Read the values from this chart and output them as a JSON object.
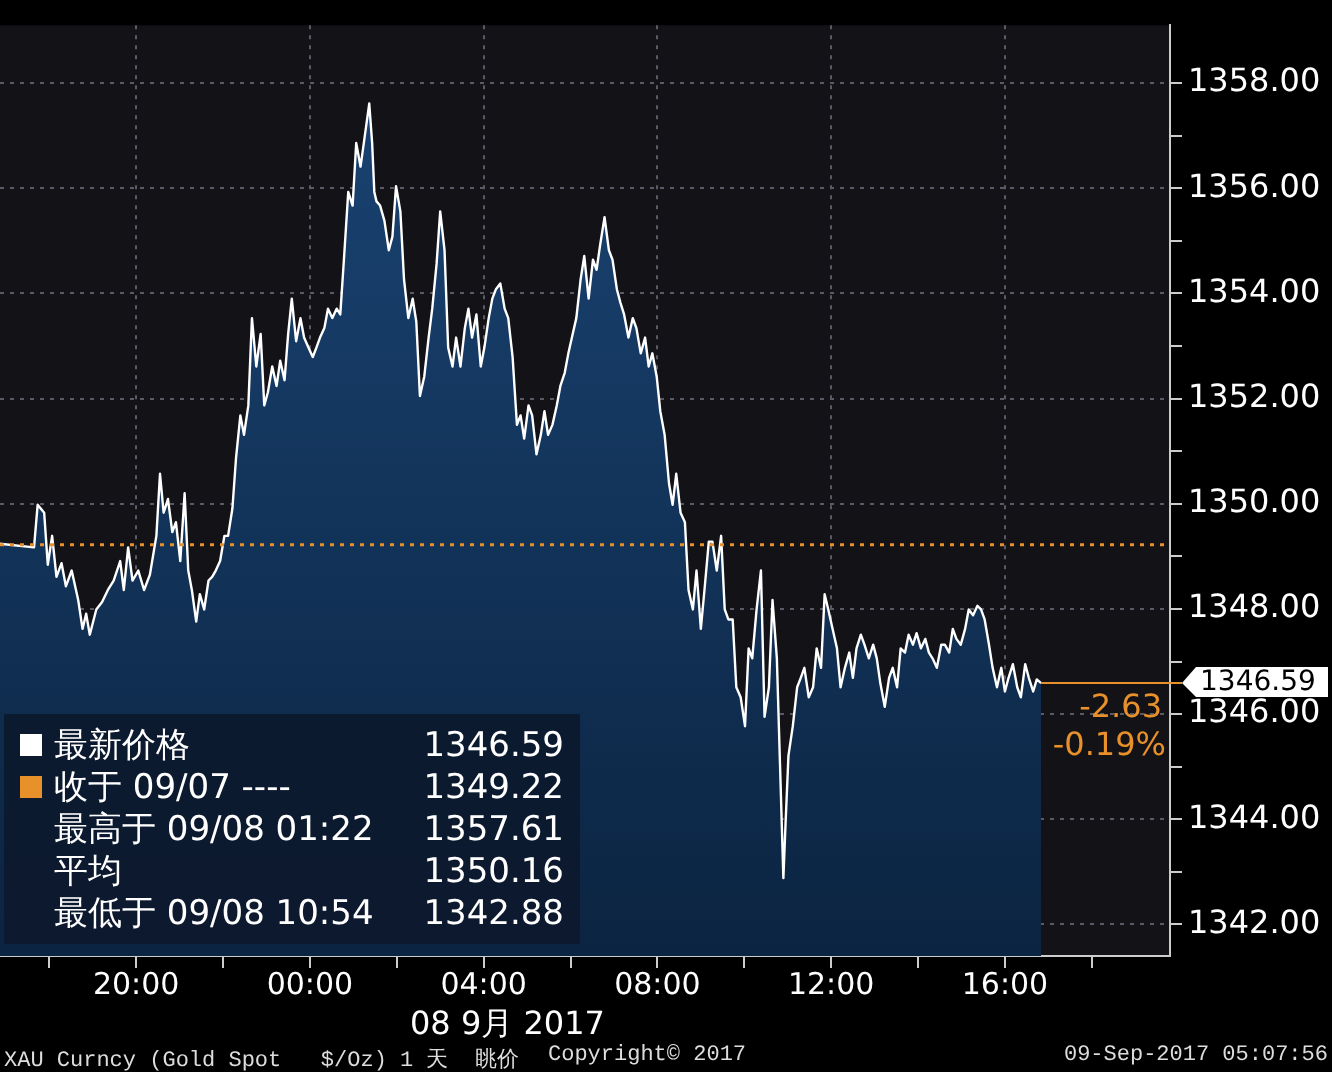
{
  "chart_data": {
    "type": "area",
    "x": [
      "2017-09-07T16:52",
      "2017-09-07T17:39",
      "2017-09-07T17:44",
      "2017-09-07T17:53",
      "2017-09-07T17:58",
      "2017-09-07T18:04",
      "2017-09-07T18:10",
      "2017-09-07T18:17",
      "2017-09-07T18:23",
      "2017-09-07T18:31",
      "2017-09-07T18:40",
      "2017-09-07T18:46",
      "2017-09-07T18:51",
      "2017-09-07T18:56",
      "2017-09-07T19:05",
      "2017-09-07T19:13",
      "2017-09-07T19:21",
      "2017-09-07T19:29",
      "2017-09-07T19:38",
      "2017-09-07T19:43",
      "2017-09-07T19:49",
      "2017-09-07T19:55",
      "2017-09-07T20:03",
      "2017-09-07T20:11",
      "2017-09-07T20:19",
      "2017-09-07T20:28",
      "2017-09-07T20:33",
      "2017-09-07T20:38",
      "2017-09-07T20:44",
      "2017-09-07T20:50",
      "2017-09-07T20:55",
      "2017-09-07T21:01",
      "2017-09-07T21:07",
      "2017-09-07T21:12",
      "2017-09-07T21:17",
      "2017-09-07T21:23",
      "2017-09-07T21:28",
      "2017-09-07T21:34",
      "2017-09-07T21:40",
      "2017-09-07T21:45",
      "2017-09-07T21:50",
      "2017-09-07T21:56",
      "2017-09-07T22:02",
      "2017-09-07T22:07",
      "2017-09-07T22:13",
      "2017-09-07T22:18",
      "2017-09-07T22:24",
      "2017-09-07T22:29",
      "2017-09-07T22:35",
      "2017-09-07T22:40",
      "2017-09-07T22:46",
      "2017-09-07T22:52",
      "2017-09-07T22:57",
      "2017-09-07T23:02",
      "2017-09-07T23:08",
      "2017-09-07T23:14",
      "2017-09-07T23:19",
      "2017-09-07T23:25",
      "2017-09-07T23:30",
      "2017-09-07T23:35",
      "2017-09-07T23:41",
      "2017-09-07T23:47",
      "2017-09-07T23:52",
      "2017-09-07T23:58",
      "2017-09-08T00:04",
      "2017-09-08T00:09",
      "2017-09-08T00:14",
      "2017-09-08T00:20",
      "2017-09-08T00:25",
      "2017-09-08T00:31",
      "2017-09-08T00:37",
      "2017-09-08T00:42",
      "2017-09-08T00:47",
      "2017-09-08T00:53",
      "2017-09-08T00:59",
      "2017-09-08T01:04",
      "2017-09-08T01:10",
      "2017-09-08T01:22",
      "2017-09-08T01:26",
      "2017-09-08T01:29",
      "2017-09-08T01:32",
      "2017-09-08T01:37",
      "2017-09-08T01:43",
      "2017-09-08T01:49",
      "2017-09-08T01:54",
      "2017-09-08T01:59",
      "2017-09-08T02:05",
      "2017-09-08T02:10",
      "2017-09-08T02:16",
      "2017-09-08T02:22",
      "2017-09-08T02:27",
      "2017-09-08T02:32",
      "2017-09-08T02:38",
      "2017-09-08T02:44",
      "2017-09-08T02:49",
      "2017-09-08T02:55",
      "2017-09-08T03:00",
      "2017-09-08T03:06",
      "2017-09-08T03:11",
      "2017-09-08T03:17",
      "2017-09-08T03:22",
      "2017-09-08T03:28",
      "2017-09-08T03:34",
      "2017-09-08T03:39",
      "2017-09-08T03:44",
      "2017-09-08T03:50",
      "2017-09-08T03:56",
      "2017-09-08T04:01",
      "2017-09-08T04:07",
      "2017-09-08T04:12",
      "2017-09-08T04:17",
      "2017-09-08T04:23",
      "2017-09-08T04:29",
      "2017-09-08T04:34",
      "2017-09-08T04:40",
      "2017-09-08T04:46",
      "2017-09-08T04:51",
      "2017-09-08T04:56",
      "2017-09-08T05:02",
      "2017-09-08T05:07",
      "2017-09-08T05:13",
      "2017-09-08T05:19",
      "2017-09-08T05:24",
      "2017-09-08T05:29",
      "2017-09-08T05:35",
      "2017-09-08T05:41",
      "2017-09-08T05:46",
      "2017-09-08T05:52",
      "2017-09-08T05:57",
      "2017-09-08T06:03",
      "2017-09-08T06:08",
      "2017-09-08T06:14",
      "2017-09-08T06:19",
      "2017-09-08T06:25",
      "2017-09-08T06:31",
      "2017-09-08T06:36",
      "2017-09-08T06:41",
      "2017-09-08T06:47",
      "2017-09-08T06:53",
      "2017-09-08T06:58",
      "2017-09-08T07:04",
      "2017-09-08T07:09",
      "2017-09-08T07:14",
      "2017-09-08T07:20",
      "2017-09-08T07:26",
      "2017-09-08T07:31",
      "2017-09-08T07:37",
      "2017-09-08T07:43",
      "2017-09-08T07:48",
      "2017-09-08T07:53",
      "2017-09-08T07:59",
      "2017-09-08T08:04",
      "2017-09-08T08:10",
      "2017-09-08T08:16",
      "2017-09-08T08:21",
      "2017-09-08T08:26",
      "2017-09-08T08:32",
      "2017-09-08T08:38",
      "2017-09-08T08:43",
      "2017-09-08T08:49",
      "2017-09-08T08:54",
      "2017-09-08T09:00",
      "2017-09-08T09:05",
      "2017-09-08T09:11",
      "2017-09-08T09:16",
      "2017-09-08T09:22",
      "2017-09-08T09:28",
      "2017-09-08T09:33",
      "2017-09-08T09:38",
      "2017-09-08T09:44",
      "2017-09-08T09:49",
      "2017-09-08T09:55",
      "2017-09-08T10:01",
      "2017-09-08T10:06",
      "2017-09-08T10:11",
      "2017-09-08T10:17",
      "2017-09-08T10:23",
      "2017-09-08T10:28",
      "2017-09-08T10:34",
      "2017-09-08T10:39",
      "2017-09-08T10:45",
      "2017-09-08T10:54",
      "2017-09-08T10:57",
      "2017-09-08T11:01",
      "2017-09-08T11:07",
      "2017-09-08T11:13",
      "2017-09-08T11:18",
      "2017-09-08T11:23",
      "2017-09-08T11:29",
      "2017-09-08T11:35",
      "2017-09-08T11:40",
      "2017-09-08T11:46",
      "2017-09-08T11:51",
      "2017-09-08T11:56",
      "2017-09-08T12:02",
      "2017-09-08T12:08",
      "2017-09-08T12:13",
      "2017-09-08T12:19",
      "2017-09-08T12:25",
      "2017-09-08T12:30",
      "2017-09-08T12:35",
      "2017-09-08T12:41",
      "2017-09-08T12:46",
      "2017-09-08T12:52",
      "2017-09-08T12:58",
      "2017-09-08T13:03",
      "2017-09-08T13:08",
      "2017-09-08T13:14",
      "2017-09-08T13:20",
      "2017-09-08T13:25",
      "2017-09-08T13:31",
      "2017-09-08T13:36",
      "2017-09-08T13:42",
      "2017-09-08T13:47",
      "2017-09-08T13:53",
      "2017-09-08T13:58",
      "2017-09-08T14:04",
      "2017-09-08T14:10",
      "2017-09-08T14:15",
      "2017-09-08T14:20",
      "2017-09-08T14:26",
      "2017-09-08T14:32",
      "2017-09-08T14:37",
      "2017-09-08T14:43",
      "2017-09-08T14:48",
      "2017-09-08T14:53",
      "2017-09-08T14:59",
      "2017-09-08T15:05",
      "2017-09-08T15:10",
      "2017-09-08T15:16",
      "2017-09-08T15:22",
      "2017-09-08T15:27",
      "2017-09-08T15:32",
      "2017-09-08T15:38",
      "2017-09-08T15:43",
      "2017-09-08T15:49",
      "2017-09-08T15:55",
      "2017-09-08T16:00",
      "2017-09-08T16:05",
      "2017-09-08T16:11",
      "2017-09-08T16:17",
      "2017-09-08T16:22",
      "2017-09-08T16:28",
      "2017-09-08T16:33",
      "2017-09-08T16:39",
      "2017-09-08T16:44",
      "2017-09-08T16:50"
    ],
    "series": [
      {
        "name": "最新价格",
        "color": "#ffffff",
        "values": [
          1349.24,
          1349.17,
          1349.98,
          1349.83,
          1348.84,
          1349.39,
          1348.61,
          1348.87,
          1348.43,
          1348.73,
          1348.17,
          1347.62,
          1347.91,
          1347.51,
          1347.99,
          1348.13,
          1348.36,
          1348.54,
          1348.91,
          1348.36,
          1349.17,
          1348.54,
          1348.73,
          1348.36,
          1348.65,
          1349.39,
          1350.57,
          1349.83,
          1350.09,
          1349.46,
          1349.65,
          1348.91,
          1350.2,
          1348.73,
          1348.36,
          1347.76,
          1348.28,
          1347.99,
          1348.54,
          1348.61,
          1348.73,
          1348.91,
          1349.39,
          1349.39,
          1349.91,
          1350.87,
          1351.68,
          1351.31,
          1351.87,
          1353.53,
          1352.61,
          1353.23,
          1351.87,
          1352.12,
          1352.61,
          1352.24,
          1352.72,
          1352.35,
          1353.23,
          1353.9,
          1353.09,
          1353.53,
          1353.16,
          1352.97,
          1352.79,
          1352.97,
          1353.16,
          1353.34,
          1353.71,
          1353.53,
          1353.71,
          1353.6,
          1354.64,
          1355.93,
          1355.67,
          1356.86,
          1356.41,
          1357.61,
          1356.86,
          1355.93,
          1355.75,
          1355.67,
          1355.38,
          1354.82,
          1355.08,
          1356.04,
          1355.56,
          1354.27,
          1353.53,
          1353.9,
          1353.46,
          1352.05,
          1352.42,
          1353.16,
          1353.71,
          1354.56,
          1355.56,
          1354.82,
          1352.97,
          1352.61,
          1353.16,
          1352.61,
          1353.34,
          1353.71,
          1353.16,
          1353.6,
          1352.61,
          1352.97,
          1353.53,
          1353.9,
          1354.08,
          1354.19,
          1353.71,
          1353.53,
          1352.79,
          1351.5,
          1351.68,
          1351.24,
          1351.87,
          1351.68,
          1350.94,
          1351.31,
          1351.76,
          1351.31,
          1351.5,
          1351.87,
          1352.24,
          1352.49,
          1352.86,
          1353.23,
          1353.53,
          1354.27,
          1354.71,
          1353.9,
          1354.64,
          1354.45,
          1354.93,
          1355.45,
          1354.82,
          1354.64,
          1354.08,
          1353.82,
          1353.6,
          1353.16,
          1353.53,
          1353.34,
          1352.86,
          1353.16,
          1352.61,
          1352.86,
          1352.42,
          1351.76,
          1351.31,
          1350.39,
          1349.98,
          1350.57,
          1349.83,
          1349.65,
          1348.36,
          1347.99,
          1348.73,
          1347.62,
          1348.36,
          1349.28,
          1349.28,
          1348.73,
          1349.39,
          1347.99,
          1347.8,
          1347.8,
          1346.51,
          1346.32,
          1345.77,
          1347.25,
          1347.06,
          1347.99,
          1348.73,
          1345.95,
          1346.51,
          1348.17,
          1347.06,
          1342.88,
          1343.92,
          1345.21,
          1345.77,
          1346.51,
          1346.69,
          1346.88,
          1346.32,
          1346.51,
          1347.25,
          1346.88,
          1348.28,
          1347.99,
          1347.62,
          1347.25,
          1346.51,
          1346.88,
          1347.17,
          1346.69,
          1347.25,
          1347.51,
          1347.32,
          1347.06,
          1347.32,
          1347.06,
          1346.58,
          1346.14,
          1346.69,
          1346.88,
          1346.51,
          1347.25,
          1347.17,
          1347.51,
          1347.32,
          1347.54,
          1347.25,
          1347.43,
          1347.17,
          1347.06,
          1346.88,
          1347.32,
          1347.32,
          1347.17,
          1347.62,
          1347.43,
          1347.32,
          1347.62,
          1347.99,
          1347.88,
          1348.06,
          1347.99,
          1347.8,
          1347.32,
          1346.88,
          1346.51,
          1346.88,
          1346.43,
          1346.69,
          1346.95,
          1346.51,
          1346.32,
          1346.95,
          1346.69,
          1346.43,
          1346.66,
          1346.59
        ]
      }
    ],
    "xlim": [
      "2017-09-07T16:52",
      "2017-09-08T19:48"
    ],
    "xticks": [
      {
        "value": "2017-09-07T18:00",
        "label": null
      },
      {
        "value": "2017-09-07T20:00",
        "label": "20:00"
      },
      {
        "value": "2017-09-07T22:00",
        "label": null
      },
      {
        "value": "2017-09-08T00:00",
        "label": "00:00"
      },
      {
        "value": "2017-09-08T02:00",
        "label": null
      },
      {
        "value": "2017-09-08T04:00",
        "label": "04:00"
      },
      {
        "value": "2017-09-08T06:00",
        "label": null
      },
      {
        "value": "2017-09-08T08:00",
        "label": "08:00"
      },
      {
        "value": "2017-09-08T10:00",
        "label": null
      },
      {
        "value": "2017-09-08T12:00",
        "label": "12:00"
      },
      {
        "value": "2017-09-08T14:00",
        "label": null
      },
      {
        "value": "2017-09-08T16:00",
        "label": "16:00"
      },
      {
        "value": "2017-09-08T18:00",
        "label": null
      }
    ],
    "ylim": [
      1341.4,
      1359.1
    ],
    "yticks": [
      {
        "value": 1342,
        "label": "1342.00"
      },
      {
        "value": 1343,
        "label": null
      },
      {
        "value": 1344,
        "label": "1344.00"
      },
      {
        "value": 1345,
        "label": null
      },
      {
        "value": 1346,
        "label": "1346.00"
      },
      {
        "value": 1347,
        "label": null
      },
      {
        "value": 1348,
        "label": "1348.00"
      },
      {
        "value": 1349,
        "label": null
      },
      {
        "value": 1350,
        "label": "1350.00"
      },
      {
        "value": 1351,
        "label": null
      },
      {
        "value": 1352,
        "label": "1352.00"
      },
      {
        "value": 1353,
        "label": null
      },
      {
        "value": 1354,
        "label": "1354.00"
      },
      {
        "value": 1355,
        "label": null
      },
      {
        "value": 1356,
        "label": "1356.00"
      },
      {
        "value": 1357,
        "label": null
      },
      {
        "value": 1358,
        "label": "1358.00"
      }
    ],
    "grid": true,
    "legend": "bottom left",
    "ref_lines": [
      {
        "axis": "y",
        "value": 1349.22,
        "label": "收于 09/07 ----",
        "color": "#e8912a",
        "line_style": "dotted"
      }
    ],
    "annotations": [
      "1346.59",
      "1349.22",
      "最高于 09/08 01:22",
      "1357.61",
      "平均",
      "1350.16",
      "最低于 09/08 10:54",
      "1342.88",
      {
        "text": "1346.59",
        "x": "2017-09-08T16:50",
        "y": 1346.59
      },
      "-2.63",
      "-0.19%",
      "08 9月 2017",
      "XAU Curncy (Gold Spot   $/Oz) 1 天  眺价",
      "Copyright© 2017",
      "09-Sep-2017 05:07:56"
    ]
  }
}
